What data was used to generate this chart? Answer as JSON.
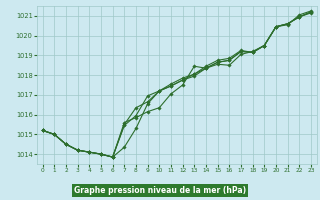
{
  "title": "Graphe pression niveau de la mer (hPa)",
  "bg_color": "#cde9f0",
  "plot_bg_color": "#cde9f0",
  "label_bg_color": "#2d7a2d",
  "grid_color": "#a0c8c8",
  "line_color": "#2d6e2d",
  "marker_color": "#2d6e2d",
  "title_color": "#ffffff",
  "xlim": [
    -0.5,
    23.5
  ],
  "ylim": [
    1013.5,
    1021.5
  ],
  "xticks": [
    0,
    1,
    2,
    3,
    4,
    5,
    6,
    7,
    8,
    9,
    10,
    11,
    12,
    13,
    14,
    15,
    16,
    17,
    18,
    19,
    20,
    21,
    22,
    23
  ],
  "yticks": [
    1014,
    1015,
    1016,
    1017,
    1018,
    1019,
    1020,
    1021
  ],
  "series": [
    [
      1015.2,
      1015.0,
      1014.5,
      1014.2,
      1014.1,
      1014.0,
      1013.85,
      1015.6,
      1015.85,
      1016.15,
      1016.35,
      1017.05,
      1017.5,
      1018.45,
      1018.35,
      1018.55,
      1018.5,
      1019.05,
      1019.2,
      1019.5,
      1020.45,
      1020.55,
      1021.05,
      1021.25
    ],
    [
      1015.2,
      1015.0,
      1014.5,
      1014.2,
      1014.1,
      1014.0,
      1013.85,
      1014.35,
      1015.3,
      1016.55,
      1017.2,
      1017.45,
      1017.75,
      1018.05,
      1018.35,
      1018.65,
      1018.75,
      1019.2,
      1019.15,
      1019.5,
      1020.45,
      1020.6,
      1020.95,
      1021.15
    ],
    [
      1015.2,
      1015.0,
      1014.5,
      1014.2,
      1014.1,
      1014.0,
      1013.85,
      1015.5,
      1016.35,
      1016.65,
      1017.2,
      1017.45,
      1017.75,
      1017.95,
      1018.35,
      1018.65,
      1018.75,
      1019.2,
      1019.15,
      1019.5,
      1020.45,
      1020.6,
      1020.95,
      1021.2
    ],
    [
      1015.2,
      1015.0,
      1014.5,
      1014.2,
      1014.1,
      1014.0,
      1013.85,
      1015.45,
      1015.95,
      1016.95,
      1017.2,
      1017.55,
      1017.85,
      1018.05,
      1018.45,
      1018.75,
      1018.85,
      1019.25,
      1019.15,
      1019.5,
      1020.45,
      1020.6,
      1020.95,
      1021.2
    ]
  ]
}
